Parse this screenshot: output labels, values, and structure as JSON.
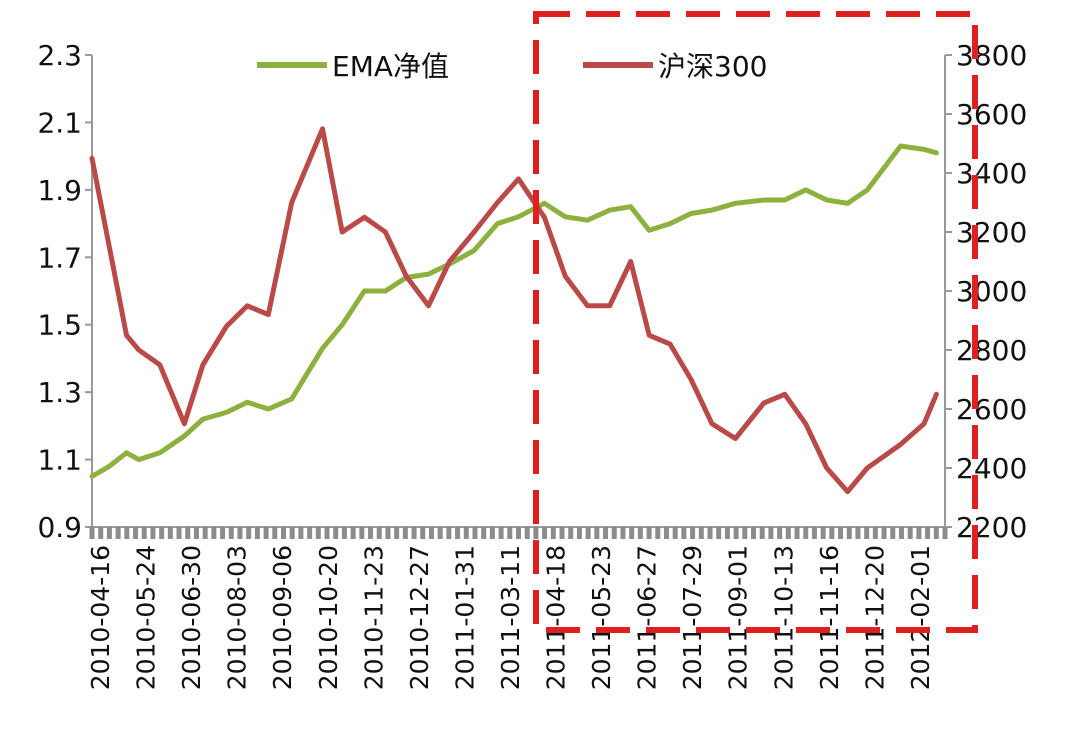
{
  "chart_data": {
    "type": "line",
    "x_tick_labels": [
      "2010-04-16",
      "2010-05-24",
      "2010-06-30",
      "2010-08-03",
      "2010-09-06",
      "2010-10-20",
      "2010-11-23",
      "2010-12-27",
      "2011-01-31",
      "2011-03-11",
      "2011-04-18",
      "2011-05-23",
      "2011-06-27",
      "2011-07-29",
      "2011-09-01",
      "2011-10-13",
      "2011-11-16",
      "2011-12-20",
      "2012-02-01"
    ],
    "y_left": {
      "ticks": [
        "2.3",
        "2.1",
        "1.9",
        "1.7",
        "1.5",
        "1.3",
        "1.1",
        "0.9"
      ],
      "ylim": [
        0.9,
        2.3
      ]
    },
    "y_right": {
      "ticks": [
        "3800",
        "3600",
        "3400",
        "3200",
        "3000",
        "2800",
        "2600",
        "2400",
        "2200"
      ],
      "ylim": [
        2200,
        3800
      ]
    },
    "legend": {
      "placement": "top"
    },
    "series": [
      {
        "name": "EMA净值",
        "axis": "left",
        "color": "#8db13f",
        "x": [
          "2010-04-16",
          "2010-04-30",
          "2010-05-14",
          "2010-05-24",
          "2010-06-10",
          "2010-06-30",
          "2010-07-15",
          "2010-08-03",
          "2010-08-20",
          "2010-09-06",
          "2010-09-25",
          "2010-10-20",
          "2010-11-05",
          "2010-11-23",
          "2010-12-10",
          "2010-12-27",
          "2011-01-14",
          "2011-01-31",
          "2011-02-20",
          "2011-03-11",
          "2011-03-28",
          "2011-04-18",
          "2011-05-05",
          "2011-05-23",
          "2011-06-10",
          "2011-06-27",
          "2011-07-12",
          "2011-07-29",
          "2011-08-15",
          "2011-09-01",
          "2011-09-20",
          "2011-10-13",
          "2011-10-30",
          "2011-11-16",
          "2011-12-03",
          "2011-12-20",
          "2012-01-05",
          "2012-02-01",
          "2012-02-20",
          "2012-03-01"
        ],
        "values": [
          1.05,
          1.08,
          1.12,
          1.1,
          1.12,
          1.17,
          1.22,
          1.24,
          1.27,
          1.25,
          1.28,
          1.43,
          1.5,
          1.6,
          1.6,
          1.64,
          1.65,
          1.68,
          1.72,
          1.8,
          1.82,
          1.86,
          1.82,
          1.81,
          1.84,
          1.85,
          1.78,
          1.8,
          1.83,
          1.84,
          1.86,
          1.87,
          1.87,
          1.9,
          1.87,
          1.86,
          1.9,
          2.03,
          2.02,
          2.01
        ]
      },
      {
        "name": "沪深300",
        "axis": "right",
        "color": "#b94a48",
        "x": [
          "2010-04-16",
          "2010-04-30",
          "2010-05-14",
          "2010-05-24",
          "2010-06-10",
          "2010-06-30",
          "2010-07-15",
          "2010-08-03",
          "2010-08-20",
          "2010-09-06",
          "2010-09-25",
          "2010-10-20",
          "2010-11-05",
          "2010-11-23",
          "2010-12-10",
          "2010-12-27",
          "2011-01-14",
          "2011-01-31",
          "2011-02-20",
          "2011-03-11",
          "2011-03-28",
          "2011-04-18",
          "2011-05-05",
          "2011-05-23",
          "2011-06-10",
          "2011-06-27",
          "2011-07-12",
          "2011-07-29",
          "2011-08-15",
          "2011-09-01",
          "2011-09-20",
          "2011-10-13",
          "2011-10-30",
          "2011-11-16",
          "2011-12-03",
          "2011-12-20",
          "2012-01-05",
          "2012-02-01",
          "2012-02-20",
          "2012-03-01"
        ],
        "values": [
          3450,
          3150,
          2850,
          2800,
          2750,
          2550,
          2750,
          2880,
          2950,
          2920,
          3300,
          3550,
          3200,
          3250,
          3200,
          3050,
          2950,
          3100,
          3200,
          3300,
          3380,
          3250,
          3050,
          2950,
          2950,
          3100,
          2850,
          2820,
          2700,
          2550,
          2500,
          2620,
          2650,
          2550,
          2400,
          2320,
          2400,
          2480,
          2550,
          2650
        ]
      }
    ]
  }
}
